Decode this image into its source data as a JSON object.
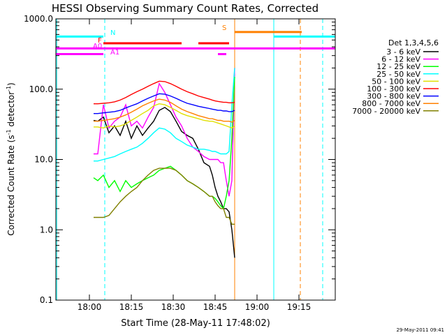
{
  "chart_data": {
    "type": "line",
    "title": "HESSI Observing Summary Count Rates, Corrected",
    "xlabel": "Start Time (28-May-11 17:48:02)",
    "ylabel_main": "Corrected Count Rate (s",
    "ylabel_sup1": "-1",
    "ylabel_mid": " detector",
    "ylabel_sup2": "-1",
    "ylabel_end": ")",
    "date_stamp": "29-May-2011 09:41",
    "x_unit": "minutes after 17:48:02",
    "xlim": [
      0,
      100
    ],
    "ylim": [
      0.1,
      1000
    ],
    "yscale": "log",
    "x_ticks": [
      {
        "label": "18:00",
        "x": 12
      },
      {
        "label": "18:15",
        "x": 27
      },
      {
        "label": "18:30",
        "x": 42
      },
      {
        "label": "18:45",
        "x": 57
      },
      {
        "label": "19:00",
        "x": 72
      },
      {
        "label": "19:15",
        "x": 87
      }
    ],
    "y_ticks": [
      {
        "label": "0.1",
        "y": 0.1
      },
      {
        "label": "1.0",
        "y": 1
      },
      {
        "label": "10.0",
        "y": 10
      },
      {
        "label": "100.0",
        "y": 100
      },
      {
        "label": "1000.0",
        "y": 1000
      }
    ],
    "legend": {
      "title": "Det 1,3,4,5,6",
      "placement": "right-outside",
      "entries": [
        {
          "label": "3 - 6 keV",
          "color": "#000000"
        },
        {
          "label": "6 - 12 keV",
          "color": "#ff00ff"
        },
        {
          "label": "12 - 25 keV",
          "color": "#00ff00"
        },
        {
          "label": "25 - 50 keV",
          "color": "#00ffff"
        },
        {
          "label": "50 - 100 keV",
          "color": "#e0e000"
        },
        {
          "label": "100 - 300 keV",
          "color": "#ff0000"
        },
        {
          "label": "300 - 800 keV",
          "color": "#0000ff"
        },
        {
          "label": "800 - 7000 keV",
          "color": "#ff8000"
        },
        {
          "label": "7000 - 20000 keV",
          "color": "#808000"
        }
      ]
    },
    "series": [
      {
        "name": "3 - 6 keV",
        "color": "#000000",
        "x": [
          13.5,
          15,
          17,
          19,
          21,
          23,
          25,
          27,
          29,
          31,
          33,
          35,
          37,
          39,
          41,
          43,
          45,
          47,
          49,
          51,
          53,
          55,
          56,
          57,
          58,
          59,
          60,
          61,
          62,
          63,
          64
        ],
        "y": [
          36,
          35,
          40,
          24,
          30,
          22,
          35,
          20,
          30,
          22,
          28,
          35,
          50,
          55,
          48,
          35,
          25,
          22,
          20,
          14,
          9,
          8,
          6,
          4,
          3,
          2.5,
          2,
          2,
          1.8,
          1,
          0.4
        ]
      },
      {
        "name": "6 - 12 keV",
        "color": "#ff00ff",
        "x": [
          13.5,
          15,
          17,
          19,
          21,
          23,
          25,
          27,
          29,
          31,
          33,
          35,
          37,
          39,
          41,
          43,
          45,
          47,
          49,
          51,
          53,
          55,
          56,
          57,
          58,
          59,
          60,
          61,
          62,
          63,
          64
        ],
        "y": [
          12,
          12,
          60,
          28,
          35,
          40,
          60,
          30,
          35,
          28,
          40,
          55,
          120,
          90,
          60,
          40,
          30,
          20,
          15,
          13,
          11,
          10,
          10,
          10,
          10,
          9,
          9,
          5,
          3,
          5,
          200
        ]
      },
      {
        "name": "12 - 25 keV",
        "color": "#00ff00",
        "x": [
          13.5,
          15,
          17,
          19,
          21,
          23,
          25,
          27,
          29,
          31,
          33,
          35,
          37,
          39,
          41,
          43,
          45,
          47,
          49,
          51,
          53,
          55,
          56,
          57,
          58,
          59,
          60,
          61,
          62,
          63,
          64
        ],
        "y": [
          5.5,
          5,
          6,
          4,
          5,
          3.5,
          5,
          4,
          4.5,
          5,
          5.5,
          6,
          7,
          7.5,
          8,
          7,
          6,
          5,
          4.5,
          4,
          3.5,
          3,
          3,
          2.8,
          2.5,
          2.2,
          2,
          3,
          5,
          20,
          150
        ]
      },
      {
        "name": "25 - 50 keV",
        "color": "#00ffff",
        "x": [
          13.5,
          15,
          17,
          19,
          21,
          23,
          25,
          27,
          29,
          31,
          33,
          35,
          37,
          39,
          41,
          43,
          45,
          47,
          49,
          51,
          53,
          55,
          56,
          57,
          58,
          59,
          60,
          61,
          62,
          63,
          64
        ],
        "y": [
          9.5,
          9.5,
          10,
          10.5,
          11,
          12,
          13,
          14,
          15,
          17,
          20,
          24,
          28,
          27,
          24,
          20,
          18,
          16,
          15,
          14,
          14,
          13.5,
          13,
          13,
          12.5,
          12,
          12,
          12,
          13,
          60,
          200
        ]
      },
      {
        "name": "50 - 100 keV",
        "color": "#e0e000",
        "x": [
          13.5,
          15,
          17,
          19,
          21,
          23,
          25,
          27,
          29,
          31,
          33,
          35,
          37,
          39,
          41,
          43,
          45,
          47,
          49,
          51,
          53,
          55,
          56,
          57,
          58,
          59,
          60,
          61,
          62,
          63,
          64
        ],
        "y": [
          29,
          29,
          28,
          30,
          29,
          30,
          32,
          36,
          40,
          45,
          50,
          58,
          62,
          60,
          55,
          50,
          45,
          42,
          40,
          38,
          36,
          35,
          35,
          34,
          33,
          32,
          31,
          30,
          29,
          28,
          30
        ]
      },
      {
        "name": "100 - 300 keV",
        "color": "#ff0000",
        "x": [
          13.5,
          15,
          17,
          19,
          21,
          23,
          25,
          27,
          29,
          31,
          33,
          35,
          37,
          39,
          41,
          43,
          45,
          47,
          49,
          51,
          53,
          55,
          56,
          57,
          58,
          59,
          60,
          61,
          62,
          63,
          64
        ],
        "y": [
          62,
          62,
          63,
          64,
          66,
          70,
          76,
          84,
          92,
          100,
          110,
          120,
          130,
          128,
          120,
          110,
          100,
          92,
          86,
          80,
          76,
          72,
          70,
          68,
          67,
          66,
          65,
          65,
          64,
          64,
          65
        ]
      },
      {
        "name": "300 - 800 keV",
        "color": "#0000ff",
        "x": [
          13.5,
          15,
          17,
          19,
          21,
          23,
          25,
          27,
          29,
          31,
          33,
          35,
          37,
          39,
          41,
          43,
          45,
          47,
          49,
          51,
          53,
          55,
          56,
          57,
          58,
          59,
          60,
          61,
          62,
          63,
          64
        ],
        "y": [
          45,
          45,
          46,
          47,
          48,
          50,
          54,
          58,
          62,
          68,
          74,
          80,
          86,
          85,
          80,
          74,
          68,
          63,
          60,
          57,
          55,
          53,
          52,
          51,
          50,
          50,
          49,
          49,
          48,
          48,
          50
        ]
      },
      {
        "name": "800 - 7000 keV",
        "color": "#ff8000",
        "x": [
          13.5,
          15,
          17,
          19,
          21,
          23,
          25,
          27,
          29,
          31,
          33,
          35,
          37,
          39,
          41,
          43,
          45,
          47,
          49,
          51,
          53,
          55,
          56,
          57,
          58,
          59,
          60,
          61,
          62,
          63,
          64
        ],
        "y": [
          35,
          35,
          36,
          37,
          38,
          40,
          43,
          47,
          52,
          58,
          63,
          68,
          72,
          70,
          65,
          58,
          52,
          48,
          45,
          42,
          40,
          38,
          38,
          37,
          36,
          36,
          35,
          35,
          35,
          34,
          36
        ]
      },
      {
        "name": "7000 - 20000 keV",
        "color": "#808000",
        "x": [
          13.5,
          15,
          17,
          19,
          21,
          23,
          25,
          27,
          29,
          31,
          33,
          35,
          37,
          39,
          41,
          43,
          45,
          47,
          49,
          51,
          53,
          55,
          56,
          57,
          58,
          59,
          60,
          61,
          62,
          63,
          64
        ],
        "y": [
          1.5,
          1.5,
          1.5,
          1.6,
          2,
          2.5,
          3,
          3.5,
          4,
          5,
          6,
          7,
          7.5,
          7.5,
          7.5,
          7,
          6,
          5,
          4.5,
          4,
          3.5,
          3,
          3,
          2.5,
          2.2,
          2,
          2,
          1.5,
          1.5,
          1.2,
          1.2
        ]
      }
    ],
    "flags": [
      {
        "label": "N",
        "color": "#00ffff",
        "y": 560,
        "segments": [
          [
            0,
            17
          ],
          [
            78,
            100
          ]
        ]
      },
      {
        "label": "F",
        "color": "#ff0000",
        "y": 450,
        "segments": [
          [
            17,
            45
          ],
          [
            51,
            62
          ]
        ]
      },
      {
        "label": "A0",
        "color": "#ff00ff",
        "y": 380,
        "segments": [
          [
            0,
            100
          ]
        ]
      },
      {
        "label": "A1",
        "color": "#ff00ff",
        "y": 315,
        "segments": [
          [
            0,
            17
          ],
          [
            58,
            61
          ]
        ]
      },
      {
        "label": "S",
        "color": "#ff8000",
        "y": 650,
        "segments": [
          [
            64,
            88
          ]
        ]
      }
    ],
    "vlines": [
      {
        "x": 17.5,
        "color": "#00ffff",
        "style": "dashed"
      },
      {
        "x": 64,
        "color": "#ff8000",
        "style": "solid"
      },
      {
        "x": 78,
        "color": "#00ffff",
        "style": "solid"
      },
      {
        "x": 87.5,
        "color": "#ff8000",
        "style": "dashed"
      },
      {
        "x": 95.5,
        "color": "#00ffff",
        "style": "dashed"
      },
      {
        "x": 0.3,
        "color": "#00ffff",
        "style": "solid"
      }
    ]
  }
}
